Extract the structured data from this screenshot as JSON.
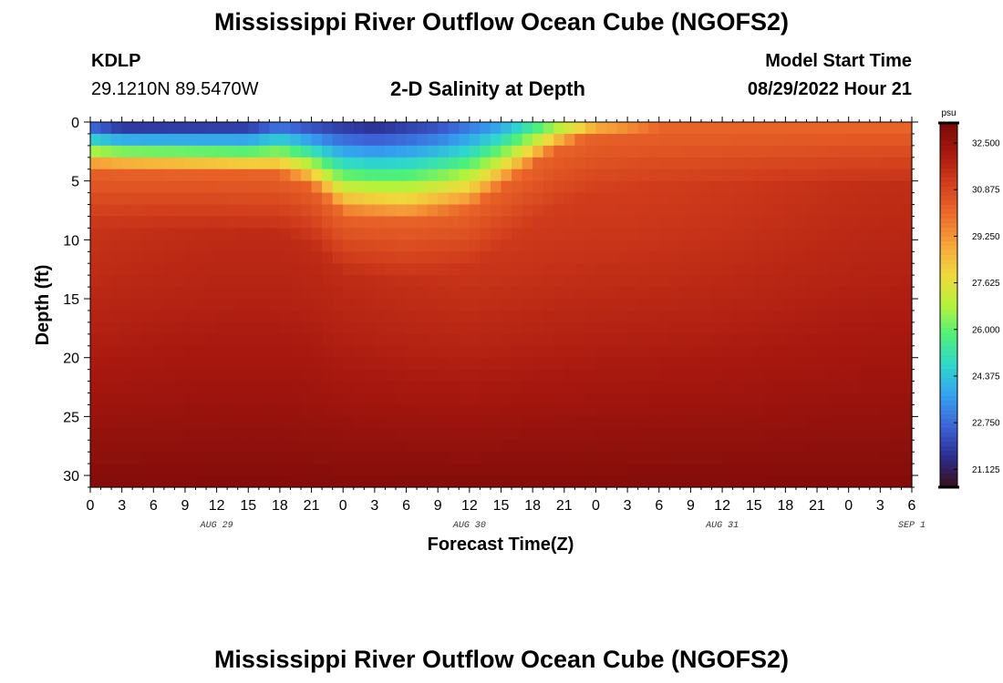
{
  "page": {
    "title": "Mississippi River Outflow Ocean Cube (NGOFS2)",
    "station_id": "KDLP",
    "station_coords": "29.1210N  89.5470W",
    "subtitle": "2-D Salinity at Depth",
    "model_start_label": "Model Start Time",
    "model_start_value": "08/29/2022 Hour 21",
    "bottom_title": "Mississippi River Outflow Ocean Cube (NGOFS2)"
  },
  "chart_data": {
    "type": "heatmap",
    "title": "2-D Salinity at Depth",
    "xlabel": "Forecast Time(Z)",
    "ylabel": "Depth (ft)",
    "x_tick_labels": [
      "0",
      "3",
      "6",
      "9",
      "12",
      "15",
      "18",
      "21",
      "0",
      "3",
      "6",
      "9",
      "12",
      "15",
      "18",
      "21",
      "0",
      "3",
      "6",
      "9",
      "12",
      "15",
      "18",
      "21",
      "0",
      "3",
      "6"
    ],
    "x_hours_range": [
      0,
      78
    ],
    "date_labels": [
      {
        "label": "AUG 29",
        "hour": 12
      },
      {
        "label": "AUG 30",
        "hour": 36
      },
      {
        "label": "AUG 31",
        "hour": 60
      },
      {
        "label": "SEP 1",
        "hour": 78
      }
    ],
    "y_ticks": [
      0,
      5,
      10,
      15,
      20,
      25,
      30
    ],
    "y_range_ft": [
      0,
      31
    ],
    "colorbar": {
      "units": "psu",
      "ticks": [
        "32.500",
        "30.875",
        "29.250",
        "27.625",
        "26.000",
        "24.375",
        "22.750",
        "21.125"
      ],
      "range": [
        20.5,
        33.2
      ]
    },
    "halocline_depth_ft": [
      {
        "hour": 0,
        "depth": 4.0
      },
      {
        "hour": 12,
        "depth": 4.3
      },
      {
        "hour": 18,
        "depth": 4.5
      },
      {
        "hour": 21,
        "depth": 5.5
      },
      {
        "hour": 24,
        "depth": 8.0
      },
      {
        "hour": 30,
        "depth": 8.5
      },
      {
        "hour": 36,
        "depth": 7.5
      },
      {
        "hour": 40,
        "depth": 5.0
      },
      {
        "hour": 44,
        "depth": 2.5
      },
      {
        "hour": 48,
        "depth": 1.0
      },
      {
        "hour": 54,
        "depth": 0.5
      },
      {
        "hour": 78,
        "depth": 0.5
      }
    ],
    "surface_salinity_psu": [
      {
        "hour": 0,
        "value": 22.0
      },
      {
        "hour": 3,
        "value": 21.0
      },
      {
        "hour": 15,
        "value": 21.2
      },
      {
        "hour": 18,
        "value": 22.3
      },
      {
        "hour": 21,
        "value": 21.8
      },
      {
        "hour": 27,
        "value": 21.3
      },
      {
        "hour": 33,
        "value": 22.0
      },
      {
        "hour": 39,
        "value": 23.5
      },
      {
        "hour": 42,
        "value": 25.0
      },
      {
        "hour": 45,
        "value": 26.5
      },
      {
        "hour": 48,
        "value": 27.8
      },
      {
        "hour": 54,
        "value": 28.3
      },
      {
        "hour": 60,
        "value": 28.2
      },
      {
        "hour": 66,
        "value": 28.6
      },
      {
        "hour": 72,
        "value": 29.2
      },
      {
        "hour": 78,
        "value": 29.4
      }
    ],
    "bottom_salinity_psu": 33.0,
    "colors": [
      "#3b0f17",
      "#2b2d8f",
      "#3c63d6",
      "#35a0f0",
      "#2ed7cc",
      "#4ef07a",
      "#b7f23a",
      "#f0d93d",
      "#f6a33a",
      "#ec6a2a",
      "#d23e1c",
      "#a8180f",
      "#7a0a09"
    ]
  }
}
